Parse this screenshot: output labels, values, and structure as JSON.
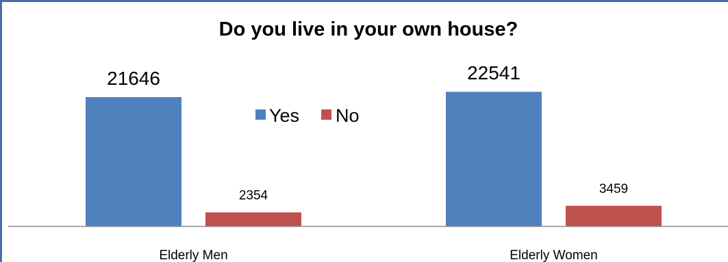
{
  "chart_data": {
    "type": "bar",
    "title": "Do you live in your own house?",
    "categories": [
      "Elderly Men",
      "Elderly Women"
    ],
    "series": [
      {
        "name": "Yes",
        "values": [
          21646,
          22541
        ],
        "color": "#4f81bd"
      },
      {
        "name": "No",
        "values": [
          2354,
          3459
        ],
        "color": "#c0504d"
      }
    ],
    "ylim": [
      0,
      25000
    ],
    "grid": false,
    "legend_position": "center"
  }
}
